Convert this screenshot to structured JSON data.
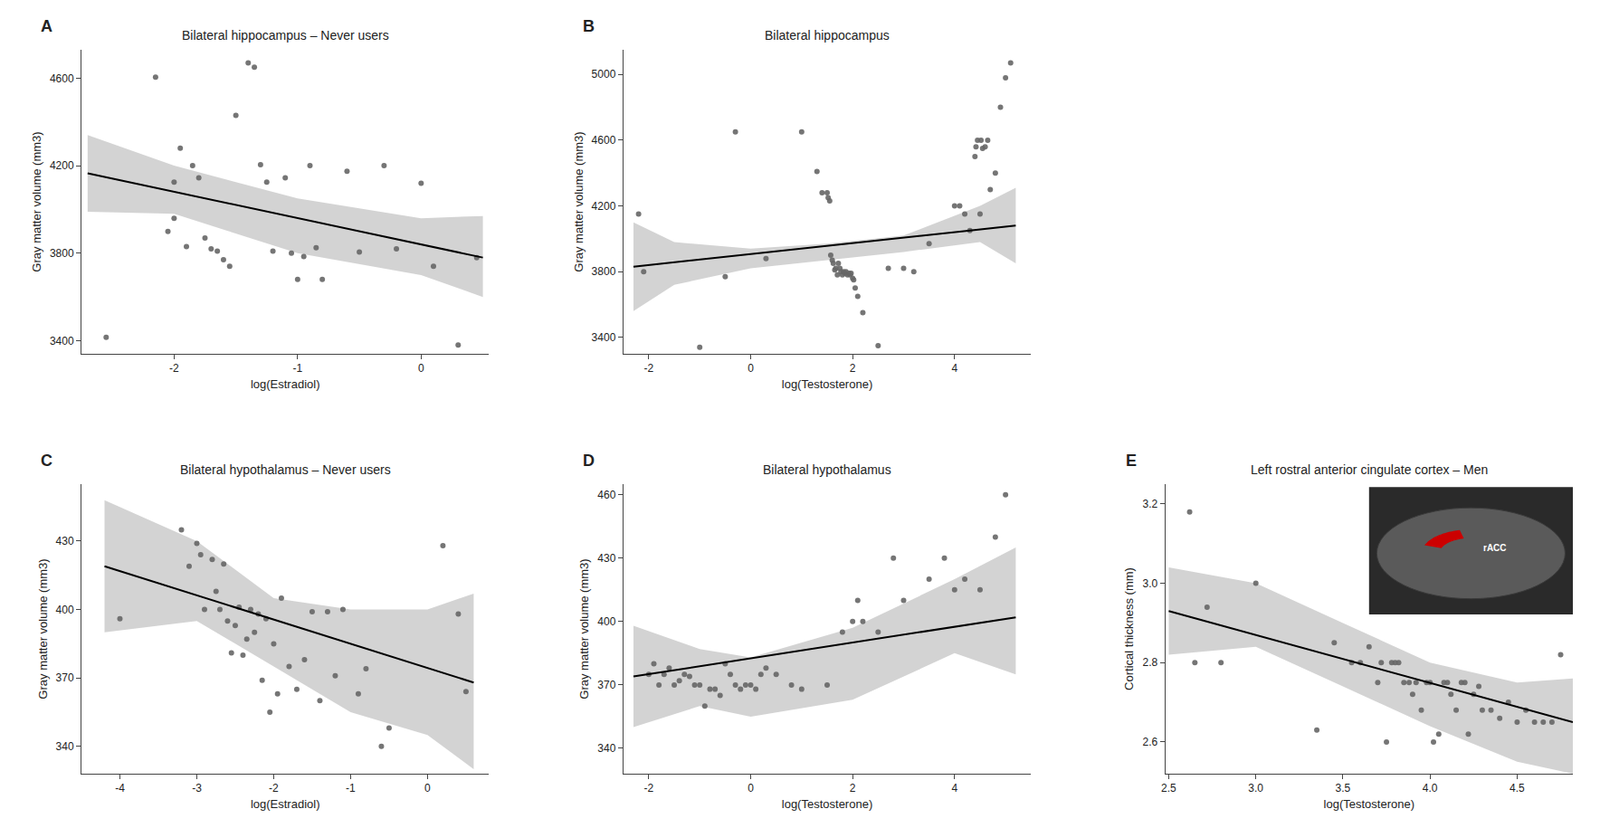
{
  "chart_data": [
    {
      "type": "scatter",
      "label": "A",
      "title": "Bilateral hippocampus – Never users",
      "x_label": "log(Estradiol)",
      "y_label": "Gray matter volume (mm3)",
      "xlim": [
        -2.75,
        0.55
      ],
      "ylim": [
        3340,
        4730
      ],
      "xticks": [
        -2,
        -1,
        0
      ],
      "yticks": [
        3400,
        3800,
        4200,
        4600
      ],
      "grid": false,
      "series": [
        {
          "type": "band",
          "color": "#c0c0c0",
          "x": [
            -2.7,
            -2.0,
            -1.0,
            0.0,
            0.5
          ],
          "upper": [
            4340,
            4200,
            4050,
            3960,
            3970
          ],
          "lower": [
            3990,
            3980,
            3800,
            3700,
            3600
          ]
        },
        {
          "type": "scatter",
          "color": "#666666",
          "x": [
            -2.55,
            -2.15,
            -2.05,
            -2.0,
            -2.0,
            -1.95,
            -1.9,
            -1.85,
            -1.8,
            -1.75,
            -1.7,
            -1.65,
            -1.6,
            -1.55,
            -1.5,
            -1.4,
            -1.35,
            -1.3,
            -1.25,
            -1.2,
            -1.1,
            -1.05,
            -1.0,
            -0.95,
            -0.9,
            -0.85,
            -0.8,
            -0.6,
            -0.5,
            -0.3,
            -0.2,
            0.0,
            0.1,
            0.3,
            0.45
          ],
          "values": [
            3415,
            4605,
            3900,
            4125,
            3960,
            4280,
            3830,
            4200,
            4145,
            3870,
            3820,
            3810,
            3770,
            3740,
            4430,
            4670,
            4650,
            4205,
            4125,
            3810,
            4145,
            3800,
            3680,
            3785,
            4200,
            3825,
            3680,
            4175,
            3805,
            4200,
            3820,
            4120,
            3740,
            3380,
            3780
          ]
        },
        {
          "type": "line",
          "color": "#000000",
          "x": [
            -2.7,
            0.5
          ],
          "values": [
            4165,
            3780
          ]
        }
      ]
    },
    {
      "type": "scatter",
      "label": "B",
      "title": "Bilateral hippocampus",
      "x_label": "log(Testosterone)",
      "y_label": "Gray matter volume (mm3)",
      "xlim": [
        -2.5,
        5.5
      ],
      "ylim": [
        3300,
        5150
      ],
      "xticks": [
        -2,
        0,
        2,
        4
      ],
      "yticks": [
        3400,
        3800,
        4200,
        4600,
        5000
      ],
      "grid": false,
      "series": [
        {
          "type": "band",
          "color": "#c0c0c0",
          "x": [
            -2.3,
            -1.5,
            0.0,
            1.5,
            3.0,
            4.5,
            5.2
          ],
          "upper": [
            4100,
            3980,
            3940,
            3970,
            4020,
            4200,
            4310
          ],
          "lower": [
            3560,
            3720,
            3820,
            3870,
            3920,
            3980,
            3850
          ]
        },
        {
          "type": "scatter",
          "color": "#666666",
          "x": [
            -2.2,
            -2.1,
            -1.0,
            -0.5,
            -0.3,
            0.3,
            1.0,
            1.3,
            1.4,
            1.5,
            1.52,
            1.55,
            1.57,
            1.6,
            1.62,
            1.65,
            1.67,
            1.7,
            1.72,
            1.75,
            1.77,
            1.8,
            1.82,
            1.85,
            1.87,
            1.9,
            1.93,
            1.95,
            1.97,
            2.0,
            2.02,
            2.05,
            2.1,
            2.2,
            2.5,
            2.7,
            3.0,
            3.2,
            3.5,
            4.0,
            4.1,
            4.2,
            4.3,
            4.4,
            4.42,
            4.45,
            4.5,
            4.52,
            4.55,
            4.6,
            4.65,
            4.7,
            4.8,
            4.9,
            5.0,
            5.1
          ],
          "values": [
            4150,
            3800,
            3340,
            3770,
            4650,
            3880,
            4650,
            4410,
            4280,
            4280,
            4250,
            4230,
            3900,
            3870,
            3850,
            3810,
            3820,
            3780,
            3850,
            3820,
            3800,
            3780,
            3800,
            3790,
            3800,
            3780,
            3790,
            3780,
            3790,
            3760,
            3750,
            3700,
            3650,
            3550,
            3350,
            3820,
            3820,
            3800,
            3970,
            4200,
            4200,
            4150,
            4050,
            4500,
            4560,
            4600,
            4150,
            4600,
            4550,
            4560,
            4600,
            4300,
            4400,
            4800,
            4980,
            5070
          ]
        },
        {
          "type": "line",
          "color": "#000000",
          "x": [
            -2.3,
            5.2
          ],
          "values": [
            3830,
            4080
          ]
        }
      ]
    },
    {
      "type": "scatter",
      "label": "C",
      "title": "Bilateral hypothalamus – Never users",
      "x_label": "log(Estradiol)",
      "y_label": "Gray matter volume (mm3)",
      "xlim": [
        -4.5,
        0.8
      ],
      "ylim": [
        328,
        455
      ],
      "xticks": [
        -4,
        -3,
        -2,
        -1,
        0
      ],
      "yticks": [
        340,
        370,
        400,
        430
      ],
      "grid": false,
      "series": [
        {
          "type": "band",
          "color": "#c0c0c0",
          "x": [
            -4.2,
            -3.0,
            -2.0,
            -1.0,
            0.0,
            0.6
          ],
          "upper": [
            448,
            430,
            405,
            400,
            400,
            407
          ],
          "lower": [
            390,
            395,
            375,
            355,
            345,
            330
          ]
        },
        {
          "type": "scatter",
          "color": "#666666",
          "x": [
            -4.0,
            -3.2,
            -3.1,
            -3.0,
            -2.95,
            -2.9,
            -2.8,
            -2.75,
            -2.7,
            -2.65,
            -2.6,
            -2.55,
            -2.5,
            -2.45,
            -2.4,
            -2.35,
            -2.3,
            -2.25,
            -2.2,
            -2.15,
            -2.1,
            -2.05,
            -2.0,
            -1.95,
            -1.9,
            -1.8,
            -1.7,
            -1.6,
            -1.5,
            -1.4,
            -1.3,
            -1.2,
            -1.1,
            -0.9,
            -0.8,
            -0.6,
            -0.5,
            0.2,
            0.4,
            0.5
          ],
          "values": [
            396,
            435,
            419,
            429,
            424,
            400,
            422,
            408,
            400,
            420,
            395,
            381,
            393,
            401,
            380,
            387,
            400,
            390,
            398,
            369,
            396,
            355,
            385,
            363,
            405,
            375,
            365,
            378,
            399,
            360,
            399,
            371,
            400,
            363,
            374,
            340,
            348,
            428,
            398,
            364
          ]
        },
        {
          "type": "line",
          "color": "#000000",
          "x": [
            -4.2,
            0.6
          ],
          "values": [
            419,
            368
          ]
        }
      ]
    },
    {
      "type": "scatter",
      "label": "D",
      "title": "Bilateral hypothalamus",
      "x_label": "log(Testosterone)",
      "y_label": "Gray matter volume (mm3)",
      "xlim": [
        -2.5,
        5.5
      ],
      "ylim": [
        328,
        465
      ],
      "xticks": [
        -2,
        0,
        2,
        4
      ],
      "yticks": [
        340,
        370,
        400,
        430,
        460
      ],
      "grid": false,
      "series": [
        {
          "type": "band",
          "color": "#c0c0c0",
          "x": [
            -2.3,
            -1.0,
            0.0,
            2.0,
            4.0,
            5.2
          ],
          "upper": [
            398,
            387,
            383,
            397,
            420,
            435
          ],
          "lower": [
            350,
            360,
            355,
            363,
            385,
            375
          ]
        },
        {
          "type": "scatter",
          "color": "#666666",
          "x": [
            -2.0,
            -1.9,
            -1.8,
            -1.7,
            -1.6,
            -1.5,
            -1.4,
            -1.3,
            -1.2,
            -1.1,
            -1.0,
            -0.9,
            -0.8,
            -0.7,
            -0.6,
            -0.5,
            -0.4,
            -0.3,
            -0.2,
            -0.1,
            0.0,
            0.1,
            0.2,
            0.3,
            0.5,
            0.8,
            1.0,
            1.5,
            1.8,
            2.0,
            2.1,
            2.2,
            2.5,
            2.8,
            3.0,
            3.5,
            3.8,
            4.0,
            4.2,
            4.5,
            4.8,
            5.0
          ],
          "values": [
            375,
            380,
            370,
            375,
            378,
            370,
            372,
            375,
            374,
            370,
            370,
            360,
            368,
            368,
            365,
            380,
            375,
            370,
            368,
            370,
            370,
            368,
            375,
            378,
            375,
            370,
            368,
            370,
            395,
            400,
            410,
            400,
            395,
            430,
            410,
            420,
            430,
            415,
            420,
            415,
            440,
            460
          ]
        },
        {
          "type": "line",
          "color": "#000000",
          "x": [
            -2.3,
            5.2
          ],
          "values": [
            374,
            402
          ]
        }
      ]
    },
    {
      "type": "scatter",
      "label": "E",
      "title": "Left rostral anterior cingulate cortex – Men",
      "x_label": "log(Testosterone)",
      "y_label": "Cortical thickness (mm)",
      "xlim": [
        2.48,
        4.82
      ],
      "ylim": [
        2.52,
        3.25
      ],
      "xticks": [
        2.5,
        {
          "value": 3,
          "label": "3.0"
        },
        3.5,
        {
          "value": 4,
          "label": "4.0"
        },
        4.5
      ],
      "yticks": [
        2.6,
        2.8,
        {
          "value": 3,
          "label": "3.0"
        },
        3.2
      ],
      "grid": false,
      "annotations": [
        {
          "text": "rACC"
        }
      ],
      "series": [
        {
          "type": "band",
          "color": "#c0c0c0",
          "x": [
            2.5,
            3.0,
            3.5,
            4.0,
            4.5,
            4.82
          ],
          "upper": [
            3.04,
            3.0,
            2.9,
            2.8,
            2.75,
            2.76
          ],
          "lower": [
            2.82,
            2.84,
            2.74,
            2.64,
            2.55,
            2.52
          ]
        },
        {
          "type": "scatter",
          "color": "#666666",
          "x": [
            2.62,
            2.65,
            2.72,
            2.8,
            3.0,
            3.35,
            3.45,
            3.55,
            3.6,
            3.65,
            3.7,
            3.72,
            3.75,
            3.78,
            3.8,
            3.82,
            3.85,
            3.88,
            3.9,
            3.92,
            3.95,
            3.98,
            4.0,
            4.02,
            4.05,
            4.08,
            4.1,
            4.12,
            4.15,
            4.18,
            4.2,
            4.22,
            4.25,
            4.28,
            4.3,
            4.35,
            4.4,
            4.45,
            4.5,
            4.55,
            4.6,
            4.65,
            4.7,
            4.75
          ],
          "values": [
            3.18,
            2.8,
            2.94,
            2.8,
            3.0,
            2.63,
            2.85,
            2.8,
            2.8,
            2.84,
            2.75,
            2.8,
            2.6,
            2.8,
            2.8,
            2.8,
            2.75,
            2.75,
            2.72,
            2.75,
            2.68,
            2.75,
            2.75,
            2.6,
            2.62,
            2.75,
            2.75,
            2.72,
            2.68,
            2.75,
            2.75,
            2.62,
            2.72,
            2.74,
            2.68,
            2.68,
            2.66,
            2.7,
            2.65,
            2.68,
            2.65,
            2.65,
            2.65,
            2.82
          ]
        },
        {
          "type": "line",
          "color": "#000000",
          "x": [
            2.5,
            4.82
          ],
          "values": [
            2.93,
            2.65
          ]
        }
      ]
    }
  ]
}
